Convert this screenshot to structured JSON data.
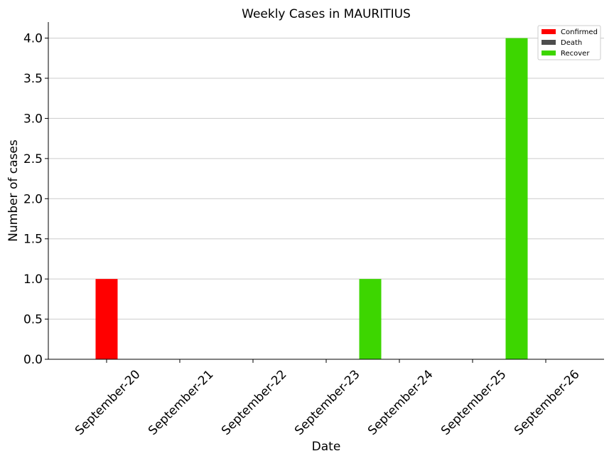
{
  "chart_data": {
    "type": "bar",
    "title": "Weekly Cases in MAURITIUS",
    "xlabel": "Date",
    "ylabel": "Number of cases",
    "categories": [
      "September-20",
      "September-21",
      "September-22",
      "September-23",
      "September-24",
      "September-25",
      "September-26"
    ],
    "ylim": [
      0,
      4.2
    ],
    "yticks": [
      "0.0",
      "0.5",
      "1.0",
      "1.5",
      "2.0",
      "2.5",
      "3.0",
      "3.5",
      "4.0"
    ],
    "grid": "horizontal",
    "legend_position": "top-right",
    "series": [
      {
        "name": "Confirmed",
        "color": "#ff0000",
        "values": [
          1,
          0,
          0,
          0,
          0,
          0,
          0
        ]
      },
      {
        "name": "Death",
        "color": "#4d4d4d",
        "values": [
          0,
          0,
          0,
          0,
          0,
          0,
          0
        ]
      },
      {
        "name": "Recover",
        "color": "#3dd600",
        "values": [
          0,
          0,
          0,
          1,
          0,
          4,
          0
        ]
      }
    ]
  }
}
